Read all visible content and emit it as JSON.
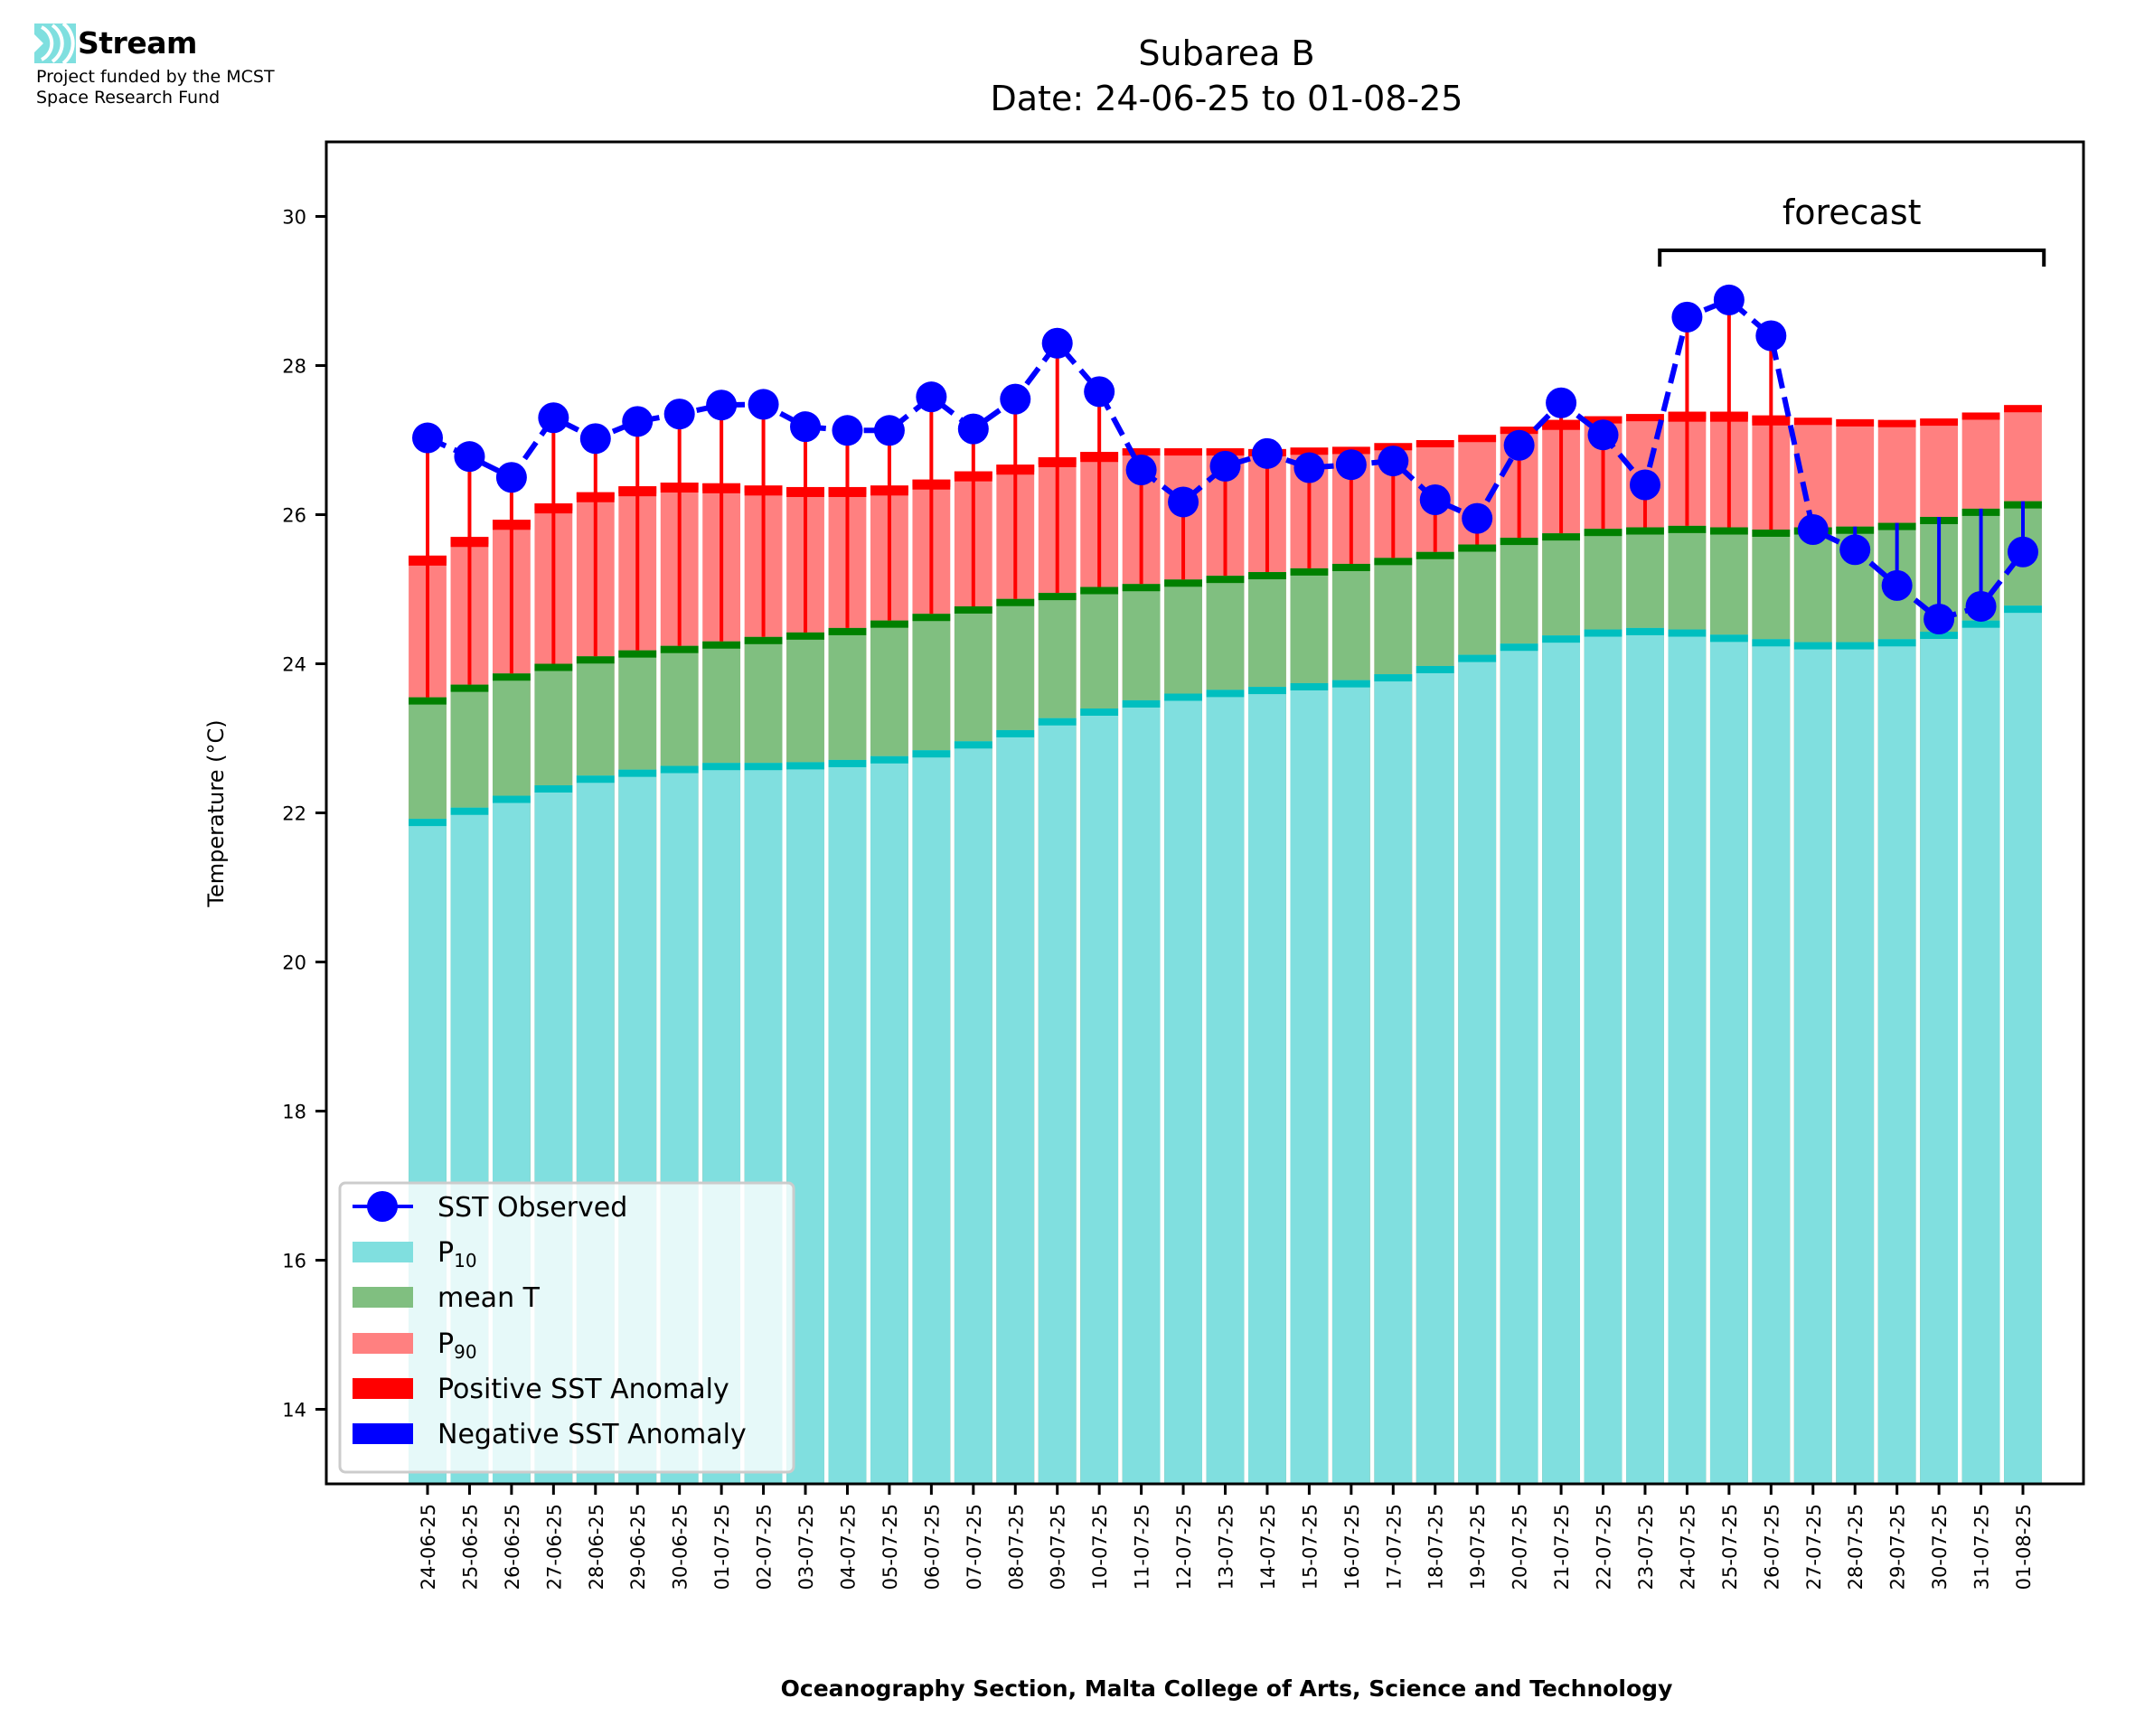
{
  "branding": {
    "name": "Stream",
    "subtitle_line1": "Project funded by the MCST",
    "subtitle_line2": "Space Research Fund",
    "logo_color": "#7fdfdf"
  },
  "colors": {
    "p10": "#80dfdf",
    "p10_cap": "#00bfbf",
    "mean": "#80bf80",
    "mean_cap": "#008000",
    "p90": "#ff8080",
    "p90_cap": "#ff0000",
    "positive_anomaly": "#ff0000",
    "negative_anomaly": "#0000ff",
    "observed": "#0000ff"
  },
  "chart_data": {
    "type": "bar",
    "title": "Subarea B",
    "subtitle": "Date: 24-06-25 to 01-08-25",
    "xlabel": "Oceanography Section, Malta College of Arts, Science and Technology",
    "ylabel": "Temperature (°C)",
    "ylim": [
      13.0,
      31.0
    ],
    "yticks": [
      14,
      16,
      18,
      20,
      22,
      24,
      26,
      28,
      30
    ],
    "grid": false,
    "legend_position": "bottom-left",
    "categories": [
      "24-06-25",
      "25-06-25",
      "26-06-25",
      "27-06-25",
      "28-06-25",
      "29-06-25",
      "30-06-25",
      "01-07-25",
      "02-07-25",
      "03-07-25",
      "04-07-25",
      "05-07-25",
      "06-07-25",
      "07-07-25",
      "08-07-25",
      "09-07-25",
      "10-07-25",
      "11-07-25",
      "12-07-25",
      "13-07-25",
      "14-07-25",
      "15-07-25",
      "16-07-25",
      "17-07-25",
      "18-07-25",
      "19-07-25",
      "20-07-25",
      "21-07-25",
      "22-07-25",
      "23-07-25",
      "24-07-25",
      "25-07-25",
      "26-07-25",
      "27-07-25",
      "28-07-25",
      "29-07-25",
      "30-07-25",
      "31-07-25",
      "01-08-25"
    ],
    "series": [
      {
        "name": "P10",
        "label_main": "P",
        "label_sub": "10",
        "type": "bar",
        "values": [
          21.92,
          22.07,
          22.23,
          22.37,
          22.5,
          22.58,
          22.63,
          22.67,
          22.67,
          22.68,
          22.71,
          22.76,
          22.84,
          22.96,
          23.11,
          23.27,
          23.4,
          23.51,
          23.6,
          23.65,
          23.69,
          23.74,
          23.78,
          23.86,
          23.97,
          24.12,
          24.27,
          24.38,
          24.46,
          24.48,
          24.46,
          24.39,
          24.33,
          24.29,
          24.29,
          24.33,
          24.43,
          24.58,
          24.78
        ]
      },
      {
        "name": "mean T",
        "label_main": "mean T",
        "label_sub": "",
        "type": "bar",
        "values": [
          23.55,
          23.72,
          23.87,
          24.0,
          24.1,
          24.18,
          24.24,
          24.3,
          24.36,
          24.42,
          24.48,
          24.58,
          24.67,
          24.77,
          24.87,
          24.95,
          25.03,
          25.07,
          25.13,
          25.18,
          25.23,
          25.28,
          25.34,
          25.42,
          25.5,
          25.6,
          25.69,
          25.75,
          25.81,
          25.83,
          25.85,
          25.83,
          25.8,
          25.83,
          25.84,
          25.89,
          25.97,
          26.08,
          26.18
        ]
      },
      {
        "name": "P90",
        "label_main": "P",
        "label_sub": "90",
        "type": "bar",
        "values": [
          25.45,
          25.7,
          25.93,
          26.15,
          26.3,
          26.38,
          26.43,
          26.42,
          26.39,
          26.37,
          26.37,
          26.39,
          26.47,
          26.58,
          26.67,
          26.77,
          26.84,
          26.89,
          26.89,
          26.89,
          26.88,
          26.9,
          26.91,
          26.96,
          27.0,
          27.07,
          27.18,
          27.27,
          27.32,
          27.35,
          27.38,
          27.38,
          27.33,
          27.3,
          27.28,
          27.27,
          27.29,
          27.37,
          27.47
        ]
      },
      {
        "name": "SST Observed",
        "label_main": "SST Observed",
        "label_sub": "",
        "type": "line",
        "values": [
          27.03,
          26.78,
          26.5,
          27.3,
          27.02,
          27.25,
          27.35,
          27.47,
          27.48,
          27.18,
          27.13,
          27.13,
          27.58,
          27.15,
          27.55,
          28.3,
          27.65,
          26.6,
          26.17,
          26.65,
          26.82,
          26.63,
          26.67,
          26.72,
          26.2,
          25.95,
          26.93,
          27.5,
          27.07,
          26.4,
          28.65,
          28.88,
          28.4,
          25.8,
          25.53,
          25.05,
          24.6,
          24.77,
          25.5
        ]
      }
    ],
    "anomaly_legend": [
      {
        "name": "Positive SST Anomaly"
      },
      {
        "name": "Negative SST Anomaly"
      }
    ],
    "annotations": [
      {
        "text": "forecast",
        "from": "24-07-25",
        "to": "01-08-25"
      }
    ]
  }
}
